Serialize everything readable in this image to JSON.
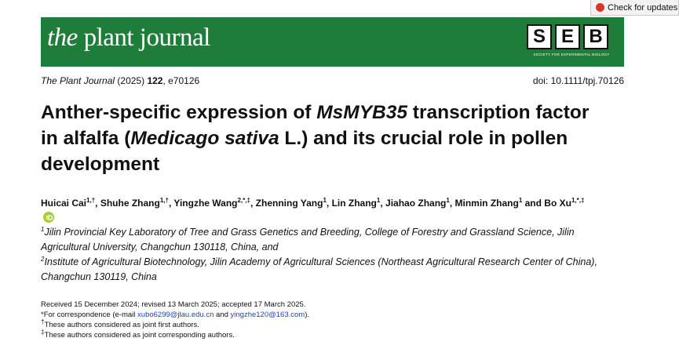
{
  "header": {
    "check_updates": "Check for updates",
    "journal_logo": {
      "prefix": "the",
      "name": "plant journal"
    },
    "society_letters": [
      "S",
      "E",
      "B"
    ],
    "society_name": "SOCIETY FOR EXPERIMENTAL BIOLOGY"
  },
  "citation": {
    "journal": "The Plant Journal",
    "year": "(2025)",
    "volume": "122",
    "article": ", e70126",
    "doi": "doi: 10.1111/tpj.70126"
  },
  "title": {
    "parts": [
      {
        "text": "Anther-specific expression of "
      },
      {
        "text": "MsMYB35",
        "italic": true
      },
      {
        "text": " transcription factor in alfalfa ("
      },
      {
        "text": "Medicago sativa",
        "italic": true
      },
      {
        "text": " L.) and its crucial role in pollen development"
      }
    ]
  },
  "authors": [
    {
      "name": "Huicai Cai",
      "sup": "1,†",
      "separator": ", "
    },
    {
      "name": "Shuhe Zhang",
      "sup": "1,†",
      "separator": ", "
    },
    {
      "name": "Yingzhe Wang",
      "sup": "2,*,‡",
      "separator": ", "
    },
    {
      "name": "Zhenning Yang",
      "sup": "1",
      "separator": ", "
    },
    {
      "name": "Lin Zhang",
      "sup": "1",
      "separator": ", "
    },
    {
      "name": "Jiahao Zhang",
      "sup": "1",
      "separator": ", "
    },
    {
      "name": "Minmin Zhang",
      "sup": "1",
      "separator": " and "
    },
    {
      "name": "Bo Xu",
      "sup": "1,*,‡"
    }
  ],
  "affiliations": [
    {
      "num": "1",
      "text": "Jilin Provincial Key Laboratory of Tree and Grass Genetics and Breeding, College of Forestry and Grassland Science, Jilin Agricultural University, Changchun 130118, China, and"
    },
    {
      "num": "2",
      "text": "Institute of Agricultural Biotechnology, Jilin Academy of Agricultural Sciences (Northeast Agricultural Research Center of China), Changchun 130119, China"
    }
  ],
  "notes": {
    "received": "Received 15 December 2024; revised 13 March 2025; accepted 17 March 2025.",
    "correspondence": {
      "mark": "*",
      "prefix": "For correspondence (e-mail ",
      "email1": "xubo6299@jlau.edu.cn",
      "middle": " and ",
      "email2": "yingzhe120@163.com",
      "suffix": ")."
    },
    "joint_first": {
      "mark": "†",
      "text": "These authors considered as joint first authors."
    },
    "joint_corresponding": {
      "mark": "‡",
      "text": "These authors considered as joint corresponding authors."
    }
  }
}
